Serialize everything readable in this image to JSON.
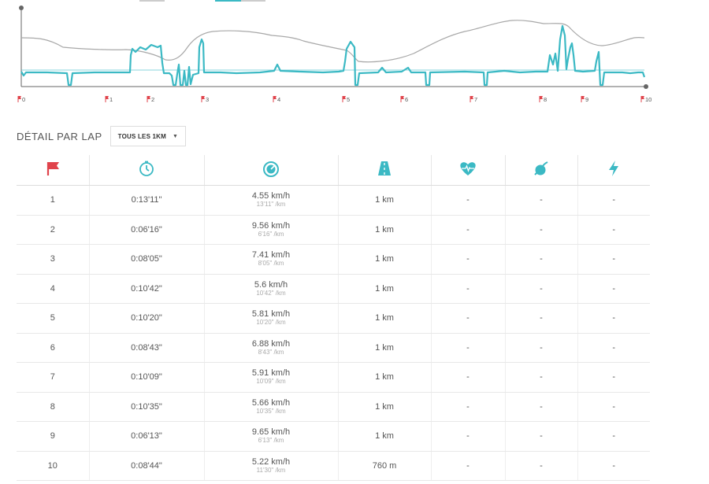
{
  "chart": {
    "markers": [
      "0",
      "1",
      "2",
      "3",
      "4",
      "5",
      "6",
      "7",
      "8",
      "9",
      "10"
    ],
    "colors": {
      "speed": "#3bb9c4",
      "elevation": "#a8a8a8",
      "flag": "#e0434b",
      "axis": "#666"
    }
  },
  "laps_section": {
    "title": "DÉTAIL PAR LAP",
    "select_label": "TOUS LES 1KM",
    "columns": [
      "flag-icon",
      "stopwatch-icon",
      "speedometer-icon",
      "road-icon",
      "heart-rate-icon",
      "cadence-icon",
      "power-icon"
    ],
    "accent_color": "#3bb9c4",
    "flag_color": "#e0434b",
    "rows": [
      {
        "lap": "1",
        "time": "0:13'11\"",
        "speed": "4.55 km/h",
        "pace": "13'11\" /km",
        "dist": "1 km",
        "hr": "-",
        "cad": "-",
        "pow": "-"
      },
      {
        "lap": "2",
        "time": "0:06'16\"",
        "speed": "9.56 km/h",
        "pace": "6'16\" /km",
        "dist": "1 km",
        "hr": "-",
        "cad": "-",
        "pow": "-"
      },
      {
        "lap": "3",
        "time": "0:08'05\"",
        "speed": "7.41 km/h",
        "pace": "8'05\" /km",
        "dist": "1 km",
        "hr": "-",
        "cad": "-",
        "pow": "-"
      },
      {
        "lap": "4",
        "time": "0:10'42\"",
        "speed": "5.6 km/h",
        "pace": "10'42\" /km",
        "dist": "1 km",
        "hr": "-",
        "cad": "-",
        "pow": "-"
      },
      {
        "lap": "5",
        "time": "0:10'20\"",
        "speed": "5.81 km/h",
        "pace": "10'20\" /km",
        "dist": "1 km",
        "hr": "-",
        "cad": "-",
        "pow": "-"
      },
      {
        "lap": "6",
        "time": "0:08'43\"",
        "speed": "6.88 km/h",
        "pace": "8'43\" /km",
        "dist": "1 km",
        "hr": "-",
        "cad": "-",
        "pow": "-"
      },
      {
        "lap": "7",
        "time": "0:10'09\"",
        "speed": "5.91 km/h",
        "pace": "10'09\" /km",
        "dist": "1 km",
        "hr": "-",
        "cad": "-",
        "pow": "-"
      },
      {
        "lap": "8",
        "time": "0:10'35\"",
        "speed": "5.66 km/h",
        "pace": "10'35\" /km",
        "dist": "1 km",
        "hr": "-",
        "cad": "-",
        "pow": "-"
      },
      {
        "lap": "9",
        "time": "0:06'13\"",
        "speed": "9.65 km/h",
        "pace": "6'13\" /km",
        "dist": "1 km",
        "hr": "-",
        "cad": "-",
        "pow": "-"
      },
      {
        "lap": "10",
        "time": "0:08'44\"",
        "speed": "5.22 km/h",
        "pace": "11'30\" /km",
        "dist": "760 m",
        "hr": "-",
        "cad": "-",
        "pow": "-"
      }
    ]
  }
}
